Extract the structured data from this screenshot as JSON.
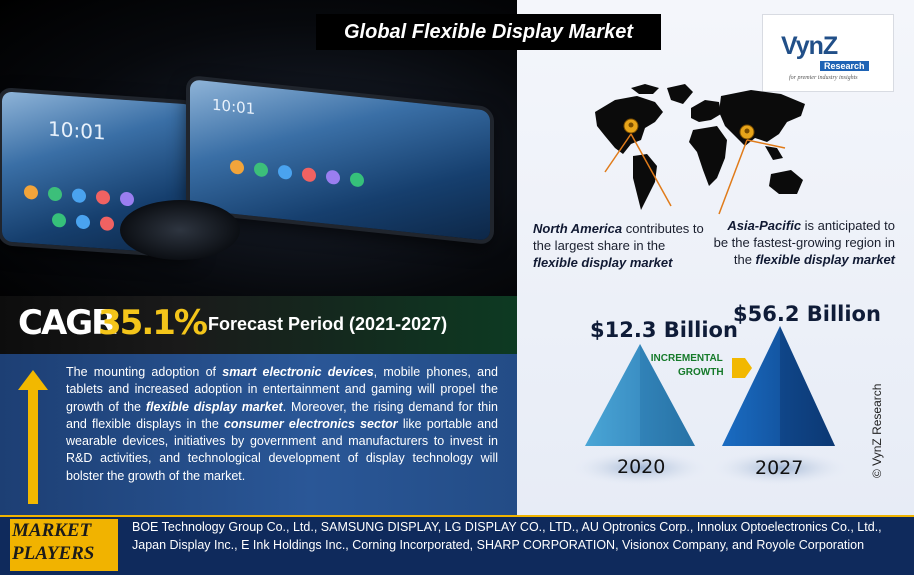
{
  "title": "Global Flexible Display Market",
  "logo": {
    "name": "VynZ",
    "subtitle": "Research",
    "tagline": "for premier industry insights"
  },
  "hero": {
    "phone_clock": "10:01",
    "colors": {
      "screen": "#3a6fa6",
      "background": "#07090d"
    }
  },
  "regions": {
    "north_america": {
      "name": "North America",
      "text_a": " contributes to the largest share in the ",
      "highlight": "flexible display market"
    },
    "asia_pacific": {
      "name": "Asia-Pacific",
      "text_a": " is anticipated to be the fastest-growing region in the ",
      "highlight": "flexible display market"
    }
  },
  "cagr": {
    "label": "CAGR",
    "value": "35.1%",
    "forecast": "Forecast Period (2021-2027)"
  },
  "description": {
    "p1": "The mounting adoption of ",
    "b1": "smart electronic devices",
    "p2": ", mobile phones, and tablets and increased adoption in entertainment and gaming will propel the growth of the ",
    "b2": "flexible display market",
    "p3": ". Moreover, the rising demand for thin and flexible displays in the ",
    "b3": "consumer electronics sector",
    "p4": " like portable and wearable devices, initiatives by government and manufacturers to invest in R&D activities, and technological development of display technology will bolster the growth of the market."
  },
  "market_size": {
    "value_2020": "$12.3 Billion",
    "value_2027": "$56.2 Billion",
    "year_2020": "2020",
    "year_2027": "2027",
    "incremental_1": "INCREMENTAL",
    "incremental_2": "GROWTH"
  },
  "copyright": "© VynZ Research",
  "players": {
    "label_1": "MARKET",
    "label_2": "PLAYERS",
    "text": "BOE Technology Group Co., Ltd., SAMSUNG DISPLAY, LG DISPLAY CO., LTD., AU Optronics Corp., Innolux Optoelectronics Co., Ltd., Japan Display Inc., E Ink Holdings Inc., Corning Incorporated, SHARP CORPORATION, Visionox Company, and Royole Corporation"
  }
}
